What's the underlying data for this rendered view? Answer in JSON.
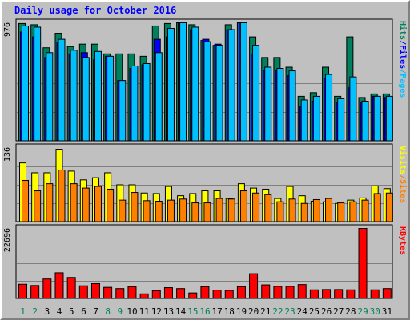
{
  "title": "Daily usage for October 2016",
  "colors": {
    "hits": "#00805c",
    "files": "#0000ff",
    "pages": "#00c0ff",
    "visits": "#ffff00",
    "sites": "#ff8000",
    "kbytes": "#ff0000",
    "weekend_day_label": "#00805c",
    "weekday_label": "#000000"
  },
  "chart_data": [
    {
      "type": "bar",
      "name": "hits-files-pages",
      "ymax_label": "976",
      "ymax": 976,
      "legend": {
        "pages": "Pages",
        "files": "Files",
        "hits": "Hits",
        "sep": "/"
      },
      "series": [
        {
          "name": "Hits",
          "values": [
            970,
            960,
            770,
            890,
            780,
            800,
            800,
            720,
            720,
            720,
            700,
            950,
            970,
            1010,
            960,
            830,
            790,
            960,
            1010,
            860,
            690,
            690,
            610,
            370,
            400,
            610,
            370,
            860,
            360,
            390,
            390
          ]
        },
        {
          "name": "Files",
          "values": [
            900,
            860,
            690,
            810,
            720,
            730,
            670,
            700,
            500,
            600,
            630,
            840,
            860,
            1010,
            920,
            840,
            800,
            920,
            1000,
            720,
            580,
            580,
            540,
            290,
            330,
            520,
            320,
            440,
            320,
            370,
            360
          ]
        },
        {
          "name": "Pages",
          "values": [
            950,
            940,
            730,
            840,
            750,
            690,
            740,
            700,
            500,
            620,
            640,
            730,
            930,
            1000,
            940,
            820,
            790,
            920,
            990,
            790,
            610,
            600,
            580,
            340,
            370,
            550,
            350,
            530,
            330,
            370,
            370
          ]
        }
      ]
    },
    {
      "type": "bar",
      "name": "visits-sites",
      "ymax_label": "136",
      "ymax": 136,
      "legend": {
        "sites": "Sites",
        "visits": "Visits",
        "sep": "/"
      },
      "series": [
        {
          "name": "Visits",
          "values": [
            108,
            90,
            90,
            133,
            93,
            77,
            81,
            90,
            68,
            68,
            53,
            52,
            65,
            48,
            52,
            57,
            57,
            43,
            70,
            62,
            60,
            43,
            65,
            48,
            38,
            37,
            34,
            40,
            44,
            66,
            61
          ]
        },
        {
          "name": "Sites",
          "values": [
            76,
            57,
            70,
            95,
            70,
            62,
            65,
            60,
            40,
            54,
            39,
            38,
            40,
            42,
            35,
            35,
            43,
            42,
            57,
            53,
            50,
            37,
            42,
            34,
            41,
            43,
            35,
            37,
            40,
            52,
            53
          ]
        }
      ]
    },
    {
      "type": "bar",
      "name": "kbytes",
      "ymax_label": "22696",
      "ymax": 22696,
      "legend": {
        "kbytes": "KBytes"
      },
      "series": [
        {
          "name": "KBytes",
          "values": [
            4700,
            4300,
            6400,
            8400,
            6900,
            4200,
            4900,
            3700,
            3300,
            3900,
            1600,
            2600,
            3600,
            3300,
            1900,
            3900,
            2800,
            2700,
            3900,
            8100,
            4500,
            4000,
            4000,
            4600,
            2900,
            3000,
            3000,
            2900,
            23800,
            2900,
            3300
          ]
        }
      ]
    }
  ],
  "days": [
    "1",
    "2",
    "3",
    "4",
    "5",
    "6",
    "7",
    "8",
    "9",
    "10",
    "11",
    "12",
    "13",
    "14",
    "15",
    "16",
    "17",
    "18",
    "19",
    "20",
    "21",
    "22",
    "23",
    "24",
    "25",
    "26",
    "27",
    "28",
    "29",
    "30",
    "31"
  ],
  "weekend_days": [
    1,
    2,
    8,
    9,
    15,
    16,
    22,
    23,
    29,
    30
  ]
}
